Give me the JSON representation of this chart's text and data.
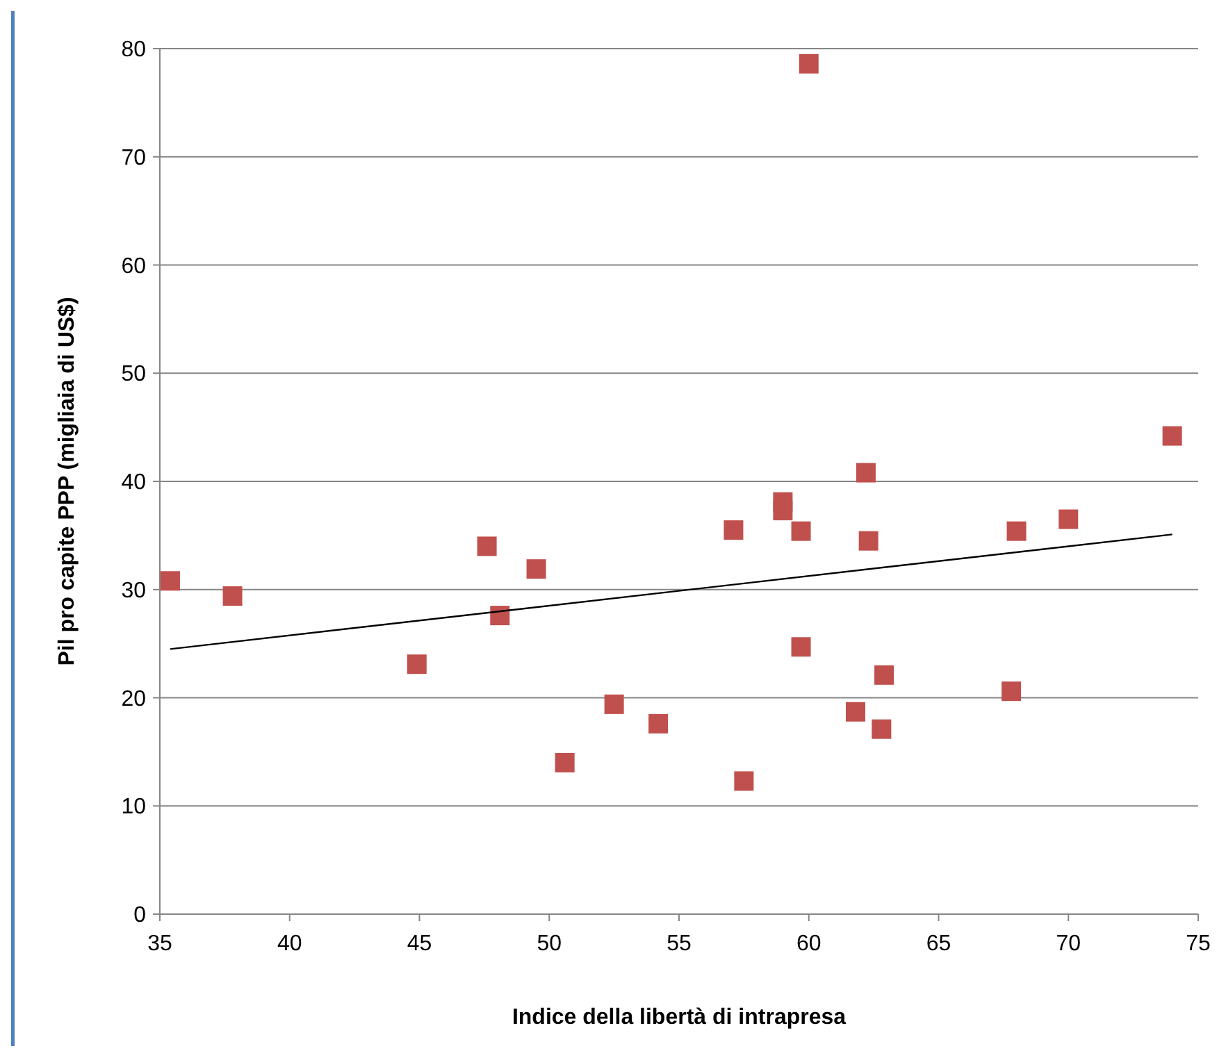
{
  "chart_data": {
    "type": "scatter",
    "xlabel": "Indice della libertà di intrapresa",
    "ylabel": "Pil pro capite PPP (migliaia di US$)",
    "xlim": [
      35,
      75
    ],
    "xticks": [
      35,
      40,
      45,
      50,
      55,
      60,
      65,
      70,
      75
    ],
    "ylim": [
      0,
      80
    ],
    "yticks": [
      0,
      10,
      20,
      30,
      40,
      50,
      60,
      70,
      80
    ],
    "grid": "y",
    "marker": "square",
    "series": [
      {
        "color": "#c0504d",
        "x": [
          35.4,
          37.8,
          44.9,
          47.6,
          48.1,
          49.5,
          50.6,
          52.5,
          54.2,
          57.1,
          57.5,
          59.0,
          59.0,
          59.7,
          59.7,
          60.0,
          62.2,
          62.3,
          61.8,
          62.8,
          62.9,
          67.8,
          68.0,
          70.0,
          74.0
        ],
        "values": [
          30.8,
          29.4,
          23.1,
          34.0,
          27.6,
          31.9,
          14.0,
          19.4,
          17.6,
          35.5,
          12.3,
          38.1,
          37.3,
          35.4,
          24.7,
          78.6,
          40.8,
          34.5,
          18.7,
          17.1,
          22.1,
          20.6,
          35.4,
          36.5,
          44.2
        ]
      },
      {
        "type": "line",
        "color": "#000000",
        "marker": "none",
        "line_style": "solid",
        "x": [
          35.4,
          74.0
        ],
        "values": [
          24.5,
          35.1
        ]
      }
    ]
  }
}
